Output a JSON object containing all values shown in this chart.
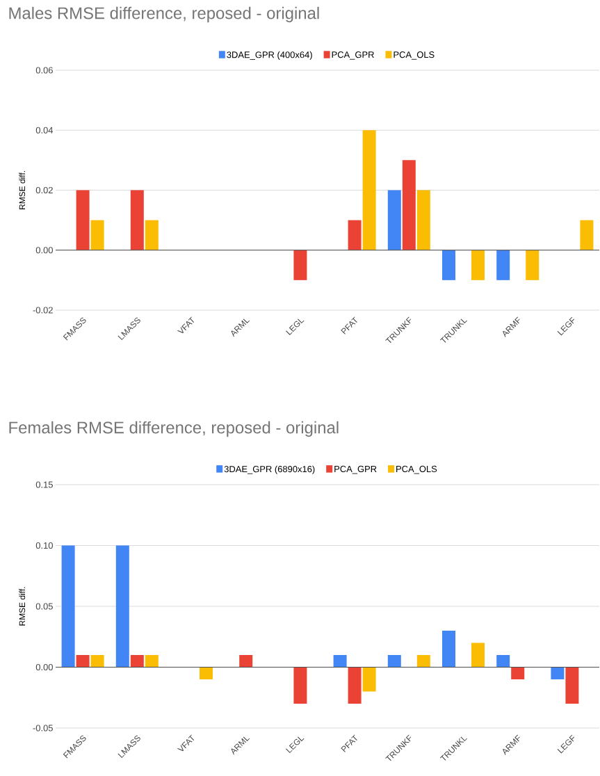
{
  "chart_data": [
    {
      "type": "bar",
      "title": "Males RMSE difference, reposed - original",
      "ylabel": "RMSE diff.",
      "categories": [
        "FMASS",
        "LMASS",
        "VFAT",
        "ARML",
        "LEGL",
        "PFAT",
        "TRUNKF",
        "TRUNKL",
        "ARMF",
        "LEGF"
      ],
      "series": [
        {
          "name": "3DAE_GPR (400x64)",
          "color": "#4285f4",
          "values": [
            0,
            0,
            0,
            0,
            0,
            0,
            0.02,
            -0.01,
            -0.01,
            0
          ]
        },
        {
          "name": "PCA_GPR",
          "color": "#ea4335",
          "values": [
            0.02,
            0.02,
            0,
            0,
            -0.01,
            0.01,
            0.03,
            0,
            0,
            0
          ]
        },
        {
          "name": "PCA_OLS",
          "color": "#fbbc04",
          "values": [
            0.01,
            0.01,
            0,
            0,
            0,
            0.04,
            0.02,
            -0.01,
            -0.01,
            0.01
          ]
        }
      ],
      "ylim": [
        -0.02,
        0.06
      ],
      "yticks": [
        {
          "value": -0.02,
          "label": "-0.02"
        },
        {
          "value": 0,
          "label": "0.00"
        },
        {
          "value": 0.02,
          "label": "0.02"
        },
        {
          "value": 0.04,
          "label": "0.04"
        },
        {
          "value": 0.06,
          "label": "0.06"
        }
      ],
      "grid": "y",
      "legend": "top"
    },
    {
      "type": "bar",
      "title": "Females RMSE difference, reposed - original",
      "ylabel": "RMSE diff.",
      "categories": [
        "FMASS",
        "LMASS",
        "VFAT",
        "ARML",
        "LEGL",
        "PFAT",
        "TRUNKF",
        "TRUNKL",
        "ARMF",
        "LEGF"
      ],
      "series": [
        {
          "name": "3DAE_GPR (6890x16)",
          "color": "#4285f4",
          "values": [
            0.1,
            0.1,
            0,
            0,
            0,
            0.01,
            0.01,
            0.03,
            0.01,
            -0.01
          ]
        },
        {
          "name": "PCA_GPR",
          "color": "#ea4335",
          "values": [
            0.01,
            0.01,
            0,
            0.01,
            -0.03,
            -0.03,
            0,
            0,
            -0.01,
            -0.03
          ]
        },
        {
          "name": "PCA_OLS",
          "color": "#fbbc04",
          "values": [
            0.01,
            0.01,
            -0.01,
            0,
            0,
            -0.02,
            0.01,
            0.02,
            0,
            0
          ]
        }
      ],
      "ylim": [
        -0.05,
        0.15
      ],
      "yticks": [
        {
          "value": -0.05,
          "label": "-0.05"
        },
        {
          "value": 0,
          "label": "0.00"
        },
        {
          "value": 0.05,
          "label": "0.05"
        },
        {
          "value": 0.1,
          "label": "0.10"
        },
        {
          "value": 0.15,
          "label": "0.15"
        }
      ],
      "grid": "y",
      "legend": "top"
    }
  ]
}
